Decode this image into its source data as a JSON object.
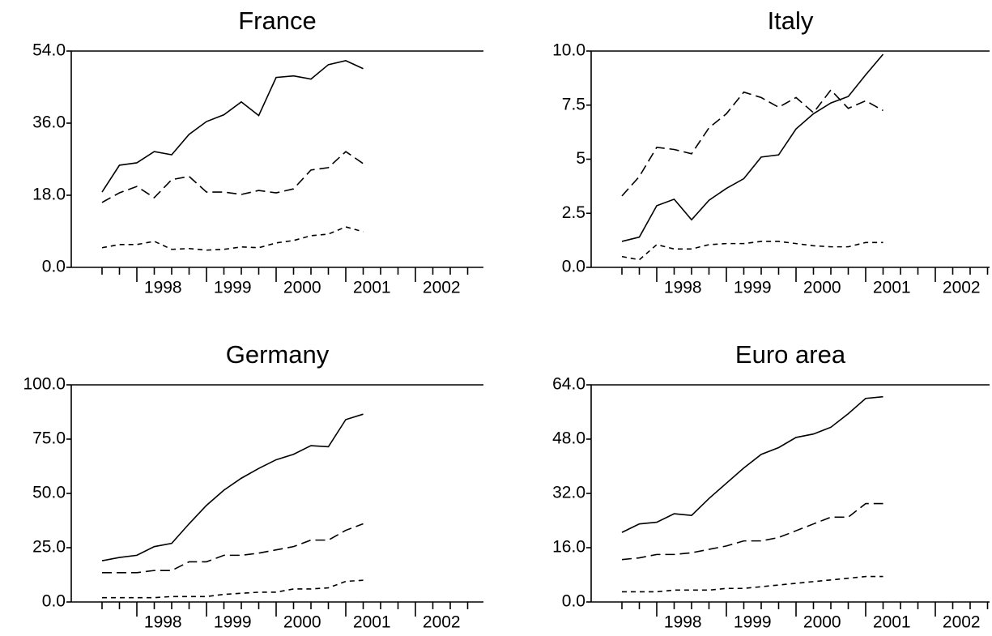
{
  "chart_data": [
    {
      "type": "line",
      "title": "France",
      "categories": [
        null,
        null,
        "1998",
        null,
        null,
        null,
        "1999",
        null,
        null,
        null,
        "2000",
        null,
        null,
        null,
        "2001",
        null,
        null,
        null,
        "2002",
        null,
        null,
        null
      ],
      "ylim": [
        0,
        54
      ],
      "yticks": [
        {
          "value": 0,
          "label": "0.0"
        },
        {
          "value": 18,
          "label": "18.0"
        },
        {
          "value": 36,
          "label": "36.0"
        },
        {
          "value": 54,
          "label": "54.0"
        }
      ],
      "series": [
        {
          "color": "#000000",
          "dash": "solid",
          "values": [
            18.8,
            25.5,
            26.1,
            28.9,
            28.1,
            33.2,
            36.4,
            38.1,
            41.3,
            37.9,
            47.4,
            47.8,
            47.0,
            50.6,
            51.6,
            49.6,
            null,
            null,
            null,
            null,
            null,
            null
          ]
        },
        {
          "color": "#000000",
          "dash": "long",
          "values": [
            16.2,
            18.6,
            20.2,
            17.4,
            21.9,
            22.7,
            18.8,
            18.8,
            18.2,
            19.2,
            18.6,
            19.6,
            24.3,
            24.9,
            28.9,
            25.9,
            null,
            null,
            null,
            null,
            null,
            null
          ]
        },
        {
          "color": "#000000",
          "dash": "short",
          "values": [
            4.9,
            5.7,
            5.7,
            6.5,
            4.5,
            4.7,
            4.3,
            4.5,
            5.1,
            4.9,
            6.1,
            6.7,
            7.9,
            8.3,
            10.1,
            8.9,
            null,
            null,
            null,
            null,
            null,
            null
          ]
        }
      ]
    },
    {
      "type": "line",
      "title": "Italy",
      "categories": [
        null,
        null,
        "1998",
        null,
        null,
        null,
        "1999",
        null,
        null,
        null,
        "2000",
        null,
        null,
        null,
        "2001",
        null,
        null,
        null,
        "2002",
        null,
        null,
        null
      ],
      "ylim": [
        0,
        10
      ],
      "yticks": [
        {
          "value": 0,
          "label": "0.0"
        },
        2.5,
        5.0,
        7.5,
        {
          "value": 10,
          "label": "10.0"
        }
      ],
      "series": [
        {
          "color": "#000000",
          "dash": "solid",
          "values": [
            1.2,
            1.4,
            2.85,
            3.15,
            2.2,
            3.1,
            3.65,
            4.1,
            5.1,
            5.2,
            6.4,
            7.1,
            7.6,
            7.9,
            8.9,
            9.85,
            null,
            null,
            null,
            null,
            null,
            null
          ]
        },
        {
          "color": "#000000",
          "dash": "long",
          "values": [
            3.3,
            4.2,
            5.55,
            5.45,
            5.25,
            6.45,
            7.1,
            8.1,
            7.85,
            7.4,
            7.85,
            7.15,
            8.2,
            7.35,
            7.7,
            7.25,
            null,
            null,
            null,
            null,
            null,
            null
          ]
        },
        {
          "color": "#000000",
          "dash": "short",
          "values": [
            0.5,
            0.35,
            1.05,
            0.85,
            0.85,
            1.05,
            1.1,
            1.1,
            1.2,
            1.2,
            1.1,
            1.0,
            0.95,
            0.95,
            1.15,
            1.15,
            null,
            null,
            null,
            null,
            null,
            null
          ]
        }
      ]
    },
    {
      "type": "line",
      "title": "Germany",
      "categories": [
        null,
        null,
        "1998",
        null,
        null,
        null,
        "1999",
        null,
        null,
        null,
        "2000",
        null,
        null,
        null,
        "2001",
        null,
        null,
        null,
        "2002",
        null,
        null,
        null
      ],
      "ylim": [
        0,
        100
      ],
      "yticks": [
        {
          "value": 0,
          "label": "0.0"
        },
        {
          "value": 25,
          "label": "25.0"
        },
        {
          "value": 50,
          "label": "50.0"
        },
        {
          "value": 75,
          "label": "75.0"
        },
        {
          "value": 100,
          "label": "100.0"
        }
      ],
      "series": [
        {
          "color": "#000000",
          "dash": "solid",
          "values": [
            19,
            20.5,
            21.5,
            25.5,
            27,
            36,
            44.5,
            51.5,
            57,
            61.5,
            65.5,
            68,
            72,
            71.5,
            84,
            86.5,
            null,
            null,
            null,
            null,
            null,
            null
          ]
        },
        {
          "color": "#000000",
          "dash": "long",
          "values": [
            13.5,
            13.5,
            13.5,
            14.5,
            14.5,
            18.5,
            18.5,
            21.5,
            21.5,
            22.5,
            24,
            25.5,
            28.5,
            28.5,
            33,
            36,
            null,
            null,
            null,
            null,
            null,
            null
          ]
        },
        {
          "color": "#000000",
          "dash": "short",
          "values": [
            2,
            2,
            2,
            2,
            2.5,
            2.5,
            2.5,
            3.5,
            4,
            4.5,
            4.5,
            6,
            6,
            6.5,
            9.5,
            10,
            null,
            null,
            null,
            null,
            null,
            null
          ]
        }
      ]
    },
    {
      "type": "line",
      "title": "Euro area",
      "categories": [
        null,
        null,
        "1998",
        null,
        null,
        null,
        "1999",
        null,
        null,
        null,
        "2000",
        null,
        null,
        null,
        "2001",
        null,
        null,
        null,
        "2002",
        null,
        null,
        null
      ],
      "ylim": [
        0,
        64
      ],
      "yticks": [
        {
          "value": 0,
          "label": "0.0"
        },
        {
          "value": 16,
          "label": "16.0"
        },
        {
          "value": 32,
          "label": "32.0"
        },
        {
          "value": 48,
          "label": "48.0"
        },
        {
          "value": 64,
          "label": "64.0"
        }
      ],
      "series": [
        {
          "color": "#000000",
          "dash": "solid",
          "values": [
            20.5,
            23,
            23.5,
            26,
            25.5,
            30.5,
            35,
            39.5,
            43.5,
            45.5,
            48.5,
            49.5,
            51.5,
            55.5,
            60,
            60.5,
            null,
            null,
            null,
            null,
            null,
            null
          ]
        },
        {
          "color": "#000000",
          "dash": "long",
          "values": [
            12.5,
            13,
            14,
            14,
            14.5,
            15.5,
            16.5,
            18,
            18,
            19,
            21,
            23,
            25,
            25,
            29,
            29,
            null,
            null,
            null,
            null,
            null,
            null
          ]
        },
        {
          "color": "#000000",
          "dash": "short",
          "values": [
            3,
            3,
            3,
            3.5,
            3.5,
            3.5,
            4,
            4,
            4.5,
            5,
            5.5,
            6,
            6.5,
            7,
            7.5,
            7.5,
            null,
            null,
            null,
            null,
            null,
            null
          ]
        }
      ]
    }
  ]
}
